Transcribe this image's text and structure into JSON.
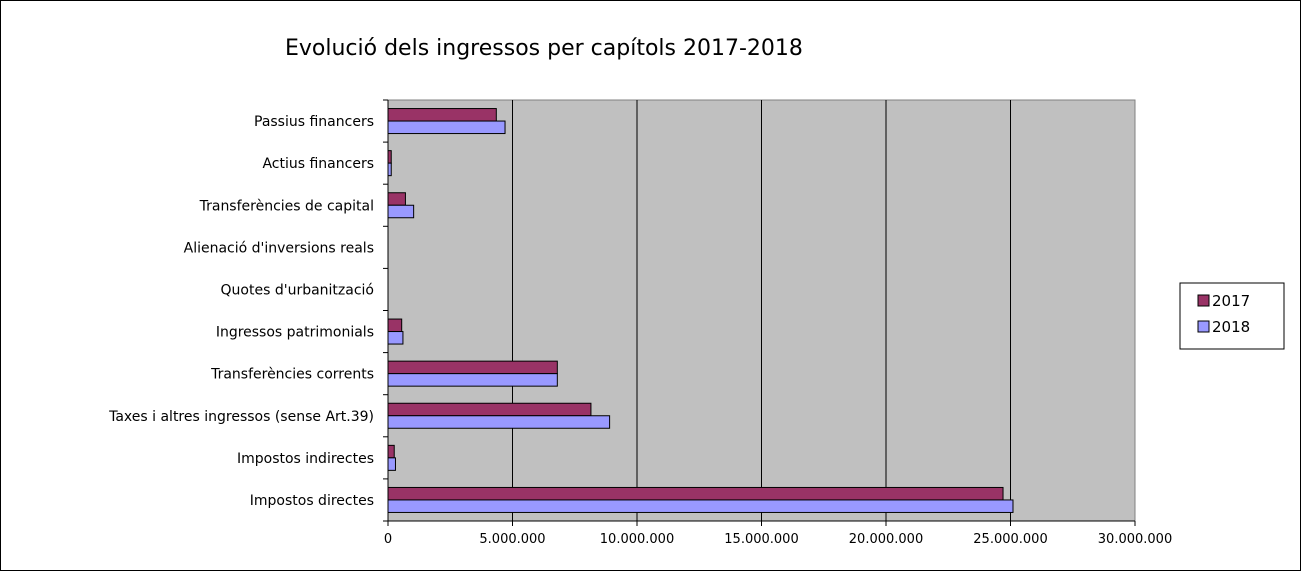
{
  "chart_data": {
    "type": "bar",
    "orientation": "horizontal",
    "title": "Evolució dels ingressos per capítols 2017-2018",
    "xlabel": "",
    "ylabel": "",
    "xlim": [
      0,
      30000000
    ],
    "x_ticks": [
      "0",
      "5.000.000",
      "10.000.000",
      "15.000.000",
      "20.000.000",
      "25.000.000",
      "30.000.000"
    ],
    "grid": "vertical major gridlines",
    "legend_position": "right",
    "plot_background": "#c0c0c0",
    "categories": [
      "Impostos directes",
      "Impostos indirectes",
      "Taxes i altres ingressos (sense Art.39)",
      "Transferències corrents",
      "Ingressos patrimonials",
      "Quotes d'urbanització",
      "Alienació d'inversions reals",
      "Transferències de capital",
      "Actius financers",
      "Passius financers"
    ],
    "series": [
      {
        "name": "2017",
        "color": "#993366",
        "values": [
          24700000,
          250000,
          8150000,
          6800000,
          550000,
          0,
          0,
          700000,
          130000,
          4350000
        ]
      },
      {
        "name": "2018",
        "color": "#9999ff",
        "values": [
          25100000,
          300000,
          8900000,
          6800000,
          600000,
          0,
          0,
          1030000,
          130000,
          4700000
        ]
      }
    ]
  }
}
